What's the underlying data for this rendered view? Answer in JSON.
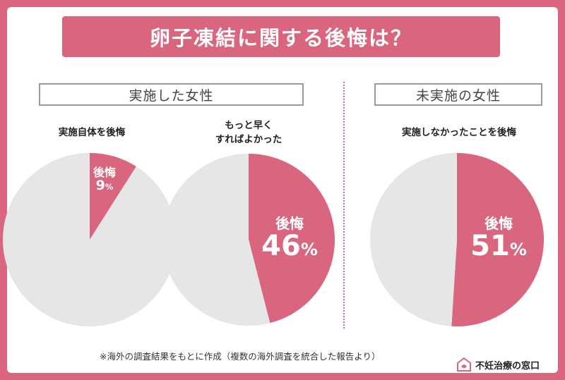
{
  "header": {
    "title": "卵子凍結に関する後悔は？"
  },
  "sections": [
    {
      "label": "実施した女性"
    },
    {
      "label": "未実施の女性"
    }
  ],
  "chart_data": [
    {
      "type": "pie",
      "title": "実施自体を後悔",
      "slices": [
        {
          "label": "後悔",
          "value": 9,
          "color": "#d9667e"
        },
        {
          "label": "",
          "value": 91,
          "color": "#e6e6e6"
        }
      ],
      "value_text": "9",
      "unit": "%"
    },
    {
      "type": "pie",
      "title": "もっと早く\nすればよかった",
      "slices": [
        {
          "label": "後悔",
          "value": 46,
          "color": "#d9667e"
        },
        {
          "label": "",
          "value": 54,
          "color": "#e6e6e6"
        }
      ],
      "value_text": "46",
      "unit": "%"
    },
    {
      "type": "pie",
      "title": "実施しなかったことを後悔",
      "slices": [
        {
          "label": "後悔",
          "value": 51,
          "color": "#d9667e"
        },
        {
          "label": "",
          "value": 49,
          "color": "#e6e6e6"
        }
      ],
      "value_text": "51",
      "unit": "%"
    }
  ],
  "footnote": "※海外の調査結果をもとに作成（複数の海外調査を統合した報告より）",
  "brand": {
    "name": "不妊治療の窓口"
  },
  "colors": {
    "accent": "#d9667e",
    "neutral": "#e6e6e6",
    "background": "#d9667e"
  }
}
